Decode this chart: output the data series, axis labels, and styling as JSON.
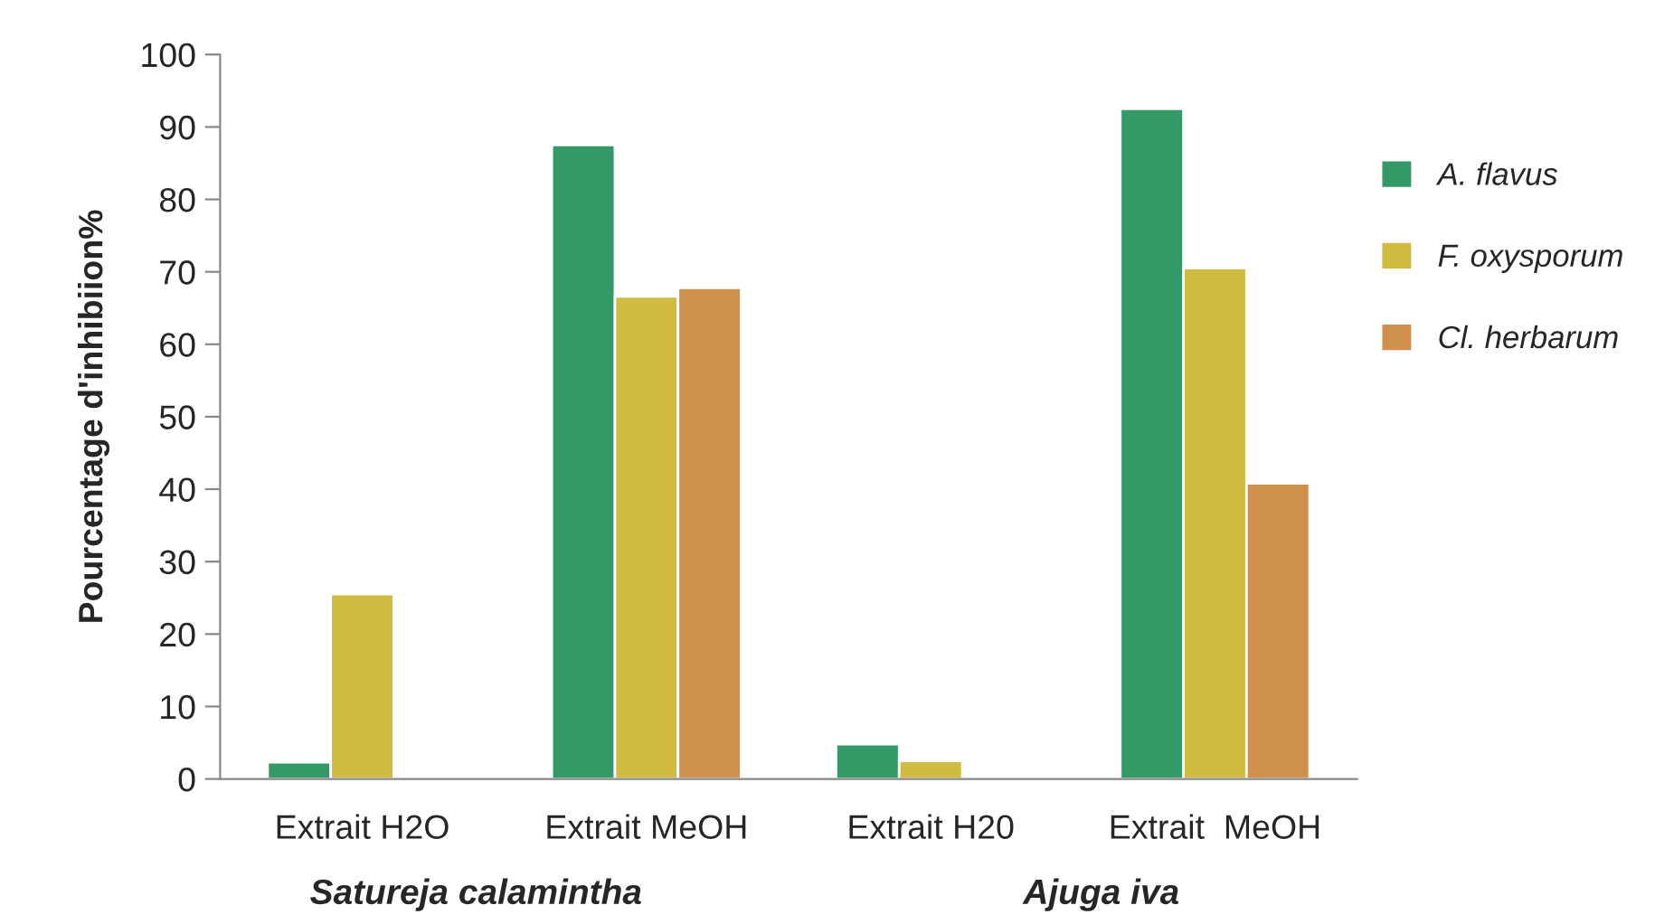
{
  "chart_data": {
    "type": "bar",
    "categories": [
      "Extrait H2O",
      "Extrait MeOH",
      "Extrait H20",
      "Extrait  MeOH"
    ],
    "ylabel": "Pourcentage d'inhibiion%",
    "annotations": [
      "Satureja calamintha",
      "Ajuga iva"
    ],
    "series": [
      {
        "name": "A. flavus",
        "color": "#339966",
        "values": [
          2.3,
          87.5,
          4.8,
          92.5
        ]
      },
      {
        "name": "F. oxysporum",
        "color": "#d1bb40",
        "values": [
          25.5,
          66.6,
          2.5,
          70.5
        ]
      },
      {
        "name": "Cl. herbarum",
        "color": "#cf904d",
        "values": [
          null,
          67.8,
          null,
          40.8
        ]
      }
    ],
    "ylim": [
      0,
      100
    ],
    "yticks": [
      0,
      10,
      20,
      30,
      40,
      50,
      60,
      70,
      80,
      90,
      100
    ],
    "grid": false,
    "legend": "right"
  }
}
